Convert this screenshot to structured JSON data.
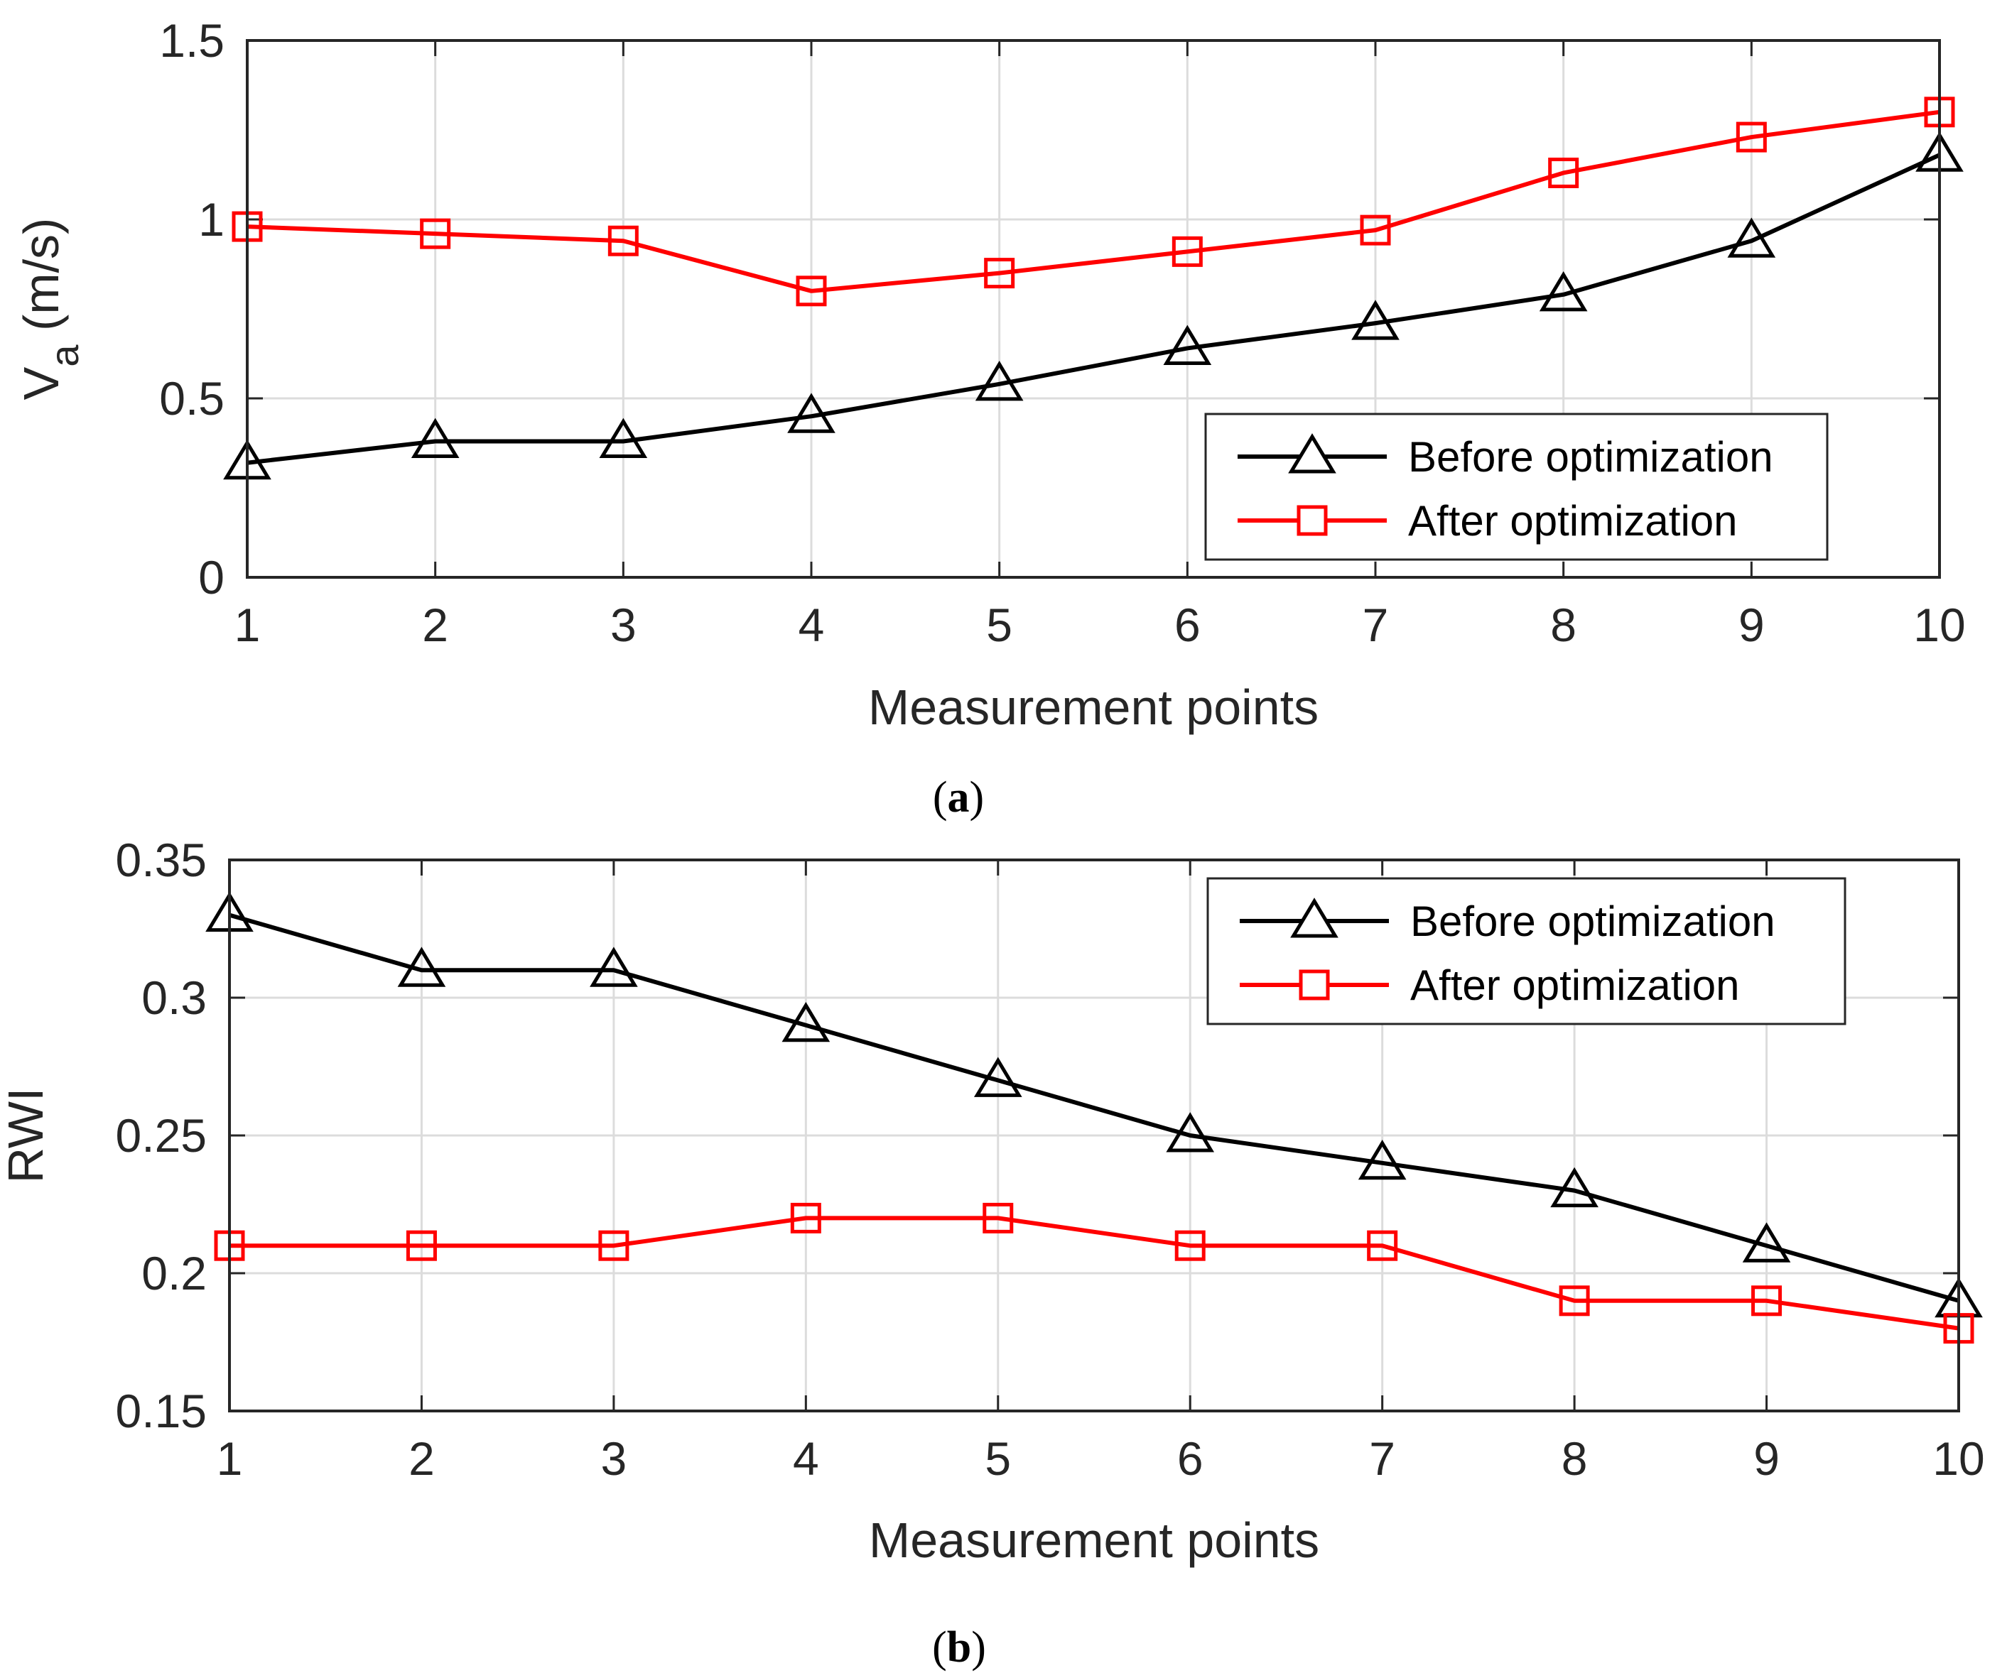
{
  "chart_data": [
    {
      "type": "line",
      "panel_label": "(a)",
      "panel_label_parts": [
        "(",
        "a",
        ")"
      ],
      "x": [
        1,
        2,
        3,
        4,
        5,
        6,
        7,
        8,
        9,
        10
      ],
      "xticks": [
        "1",
        "2",
        "3",
        "4",
        "5",
        "6",
        "7",
        "8",
        "9",
        "10"
      ],
      "xlim": [
        1,
        10
      ],
      "ylim": [
        0,
        1.5
      ],
      "yticks": [
        "0",
        "0.5",
        "1",
        "1.5"
      ],
      "ytick_values": [
        0,
        0.5,
        1,
        1.5
      ],
      "xlabel": "Measurement points",
      "ylabel_main": "V",
      "ylabel_sub": "a",
      "ylabel_unit": " (m/s)",
      "grid": true,
      "legend_position": "bottom-right",
      "series": [
        {
          "name": "Before optimization",
          "color": "#000000",
          "marker": "triangle",
          "values": [
            0.32,
            0.38,
            0.38,
            0.45,
            0.54,
            0.64,
            0.71,
            0.79,
            0.94,
            1.18
          ]
        },
        {
          "name": "After optimization",
          "color": "#ff0000",
          "marker": "square",
          "values": [
            0.98,
            0.96,
            0.94,
            0.8,
            0.85,
            0.91,
            0.97,
            1.13,
            1.23,
            1.3
          ]
        }
      ]
    },
    {
      "type": "line",
      "panel_label": "(b)",
      "panel_label_parts": [
        "(",
        "b",
        ")"
      ],
      "x": [
        1,
        2,
        3,
        4,
        5,
        6,
        7,
        8,
        9,
        10
      ],
      "xticks": [
        "1",
        "2",
        "3",
        "4",
        "5",
        "6",
        "7",
        "8",
        "9",
        "10"
      ],
      "xlim": [
        1,
        10
      ],
      "ylim": [
        0.15,
        0.35
      ],
      "yticks": [
        "0.15",
        "0.2",
        "0.25",
        "0.3",
        "0.35"
      ],
      "ytick_values": [
        0.15,
        0.2,
        0.25,
        0.3,
        0.35
      ],
      "xlabel": "Measurement points",
      "ylabel": "RWI",
      "grid": true,
      "legend_position": "top-right",
      "series": [
        {
          "name": "Before optimization",
          "color": "#000000",
          "marker": "triangle",
          "values": [
            0.33,
            0.31,
            0.31,
            0.29,
            0.27,
            0.25,
            0.24,
            0.23,
            0.21,
            0.19
          ]
        },
        {
          "name": "After optimization",
          "color": "#ff0000",
          "marker": "square",
          "values": [
            0.21,
            0.21,
            0.21,
            0.22,
            0.22,
            0.21,
            0.21,
            0.19,
            0.19,
            0.18
          ]
        }
      ]
    }
  ]
}
